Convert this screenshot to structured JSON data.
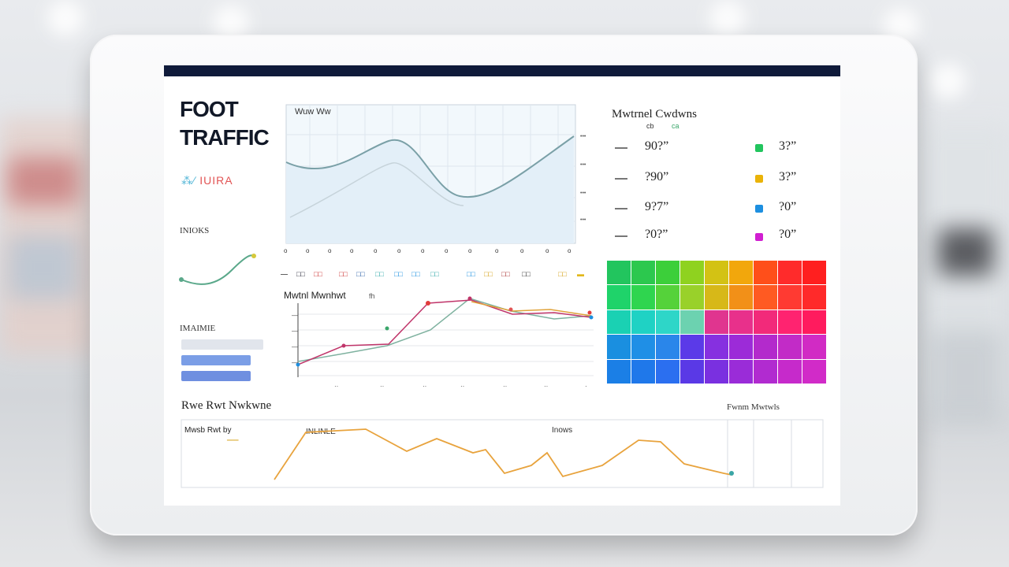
{
  "dashboard": {
    "title_line1": "FOOT",
    "title_line2": "TRAFFIC",
    "spark_label_a": "⁂∕",
    "spark_label_b": "IUIRA",
    "small_label": "INIOKS",
    "filter_label": "IMAIMIE"
  },
  "area_chart": {
    "title": "Wuw Ww"
  },
  "comparison_chart": {
    "title": "Mwtnl Mwnhwt",
    "subtitle": "fh"
  },
  "legend_panel": {
    "title": "Mwtrnel Cwdwns",
    "col_a": "cb",
    "col_b": "ca",
    "items": [
      {
        "left": "90?”",
        "right": "3?”",
        "color": "#22c55e"
      },
      {
        "left": "?90”",
        "right": "3?”",
        "color": "#eab308"
      },
      {
        "left": "9?7”",
        "right": "?0”",
        "color": "#1d8fe0"
      },
      {
        "left": "?0?”",
        "right": "?0”",
        "color": "#d11fd1"
      }
    ]
  },
  "bottom_chart": {
    "title": "Rwe Rwt Nwkwne",
    "label_left": "Mwsb Rwt by",
    "label_mid": "INLINLE",
    "label_mid2": "Inows",
    "label_right": "Fwnm Mwtwls"
  },
  "heatmap_colors": [
    "#22c55e",
    "#2cc84e",
    "#3ccf3a",
    "#8fd21f",
    "#d3c214",
    "#f2a70c",
    "#ff4f1a",
    "#ff2b2b",
    "#ff1f1f",
    "#1fd36a",
    "#2fd54f",
    "#55d23a",
    "#99d12a",
    "#d7b818",
    "#f29018",
    "#ff5a22",
    "#ff3a32",
    "#ff2a2a",
    "#1ad1b3",
    "#1fd2c4",
    "#2ed6c8",
    "#6cd2b0",
    "#e0358f",
    "#e8308b",
    "#f22a7a",
    "#ff2370",
    "#ff1b5e",
    "#1a8fe0",
    "#1f8fe6",
    "#2a86ea",
    "#5b3ae8",
    "#8630e0",
    "#9c2bd8",
    "#b32acc",
    "#c22bc7",
    "#d12bc4",
    "#1b7fe6",
    "#1f78ea",
    "#2b6ff0",
    "#5a39e6",
    "#7a30e0",
    "#9a2cd8",
    "#b12bd0",
    "#c62acb",
    "#d12bc8"
  ]
}
